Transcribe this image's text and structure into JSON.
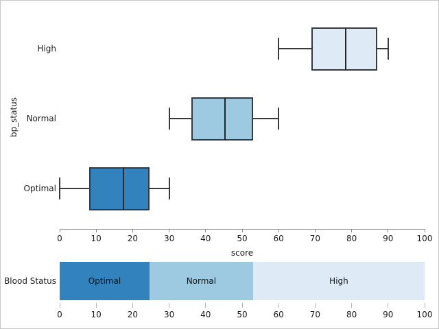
{
  "figure": {
    "background": "#ffffff",
    "border_color": "#c7c7c7",
    "text_color": "#1a1a1a"
  },
  "chart_data": [
    {
      "type": "boxplot",
      "orientation": "horizontal",
      "title": "",
      "ylabel": "bp_status",
      "xlabel": "score",
      "xlim": [
        0,
        100
      ],
      "x_ticks": [
        0,
        10,
        20,
        30,
        40,
        50,
        60,
        70,
        80,
        90,
        100
      ],
      "grid": false,
      "categories": [
        "High",
        "Normal",
        "Optimal"
      ],
      "series": [
        {
          "category": "High",
          "whisker_low": 60,
          "q1": 69,
          "median": 78.4,
          "q3": 87,
          "whisker_high": 90,
          "color": "#DEEBF7"
        },
        {
          "category": "Normal",
          "whisker_low": 30,
          "q1": 36,
          "median": 45.3,
          "q3": 53,
          "whisker_high": 60,
          "color": "#9ECAE1"
        },
        {
          "category": "Optimal",
          "whisker_low": 0,
          "q1": 8,
          "median": 17.5,
          "q3": 24.6,
          "whisker_high": 30,
          "color": "#3182BD"
        }
      ]
    },
    {
      "type": "bar",
      "subtype": "block-band",
      "label": "Blood Status",
      "xlim": [
        0,
        100
      ],
      "x_ticks": [
        0,
        10,
        20,
        30,
        40,
        50,
        60,
        70,
        80,
        90,
        100
      ],
      "segments": [
        {
          "label": "Optimal",
          "start": 0,
          "end": 24.6,
          "color": "#3182BD"
        },
        {
          "label": "Normal",
          "start": 24.6,
          "end": 53,
          "color": "#9ECAE1"
        },
        {
          "label": "High",
          "start": 53,
          "end": 100,
          "color": "#DEEBF7"
        }
      ]
    }
  ]
}
